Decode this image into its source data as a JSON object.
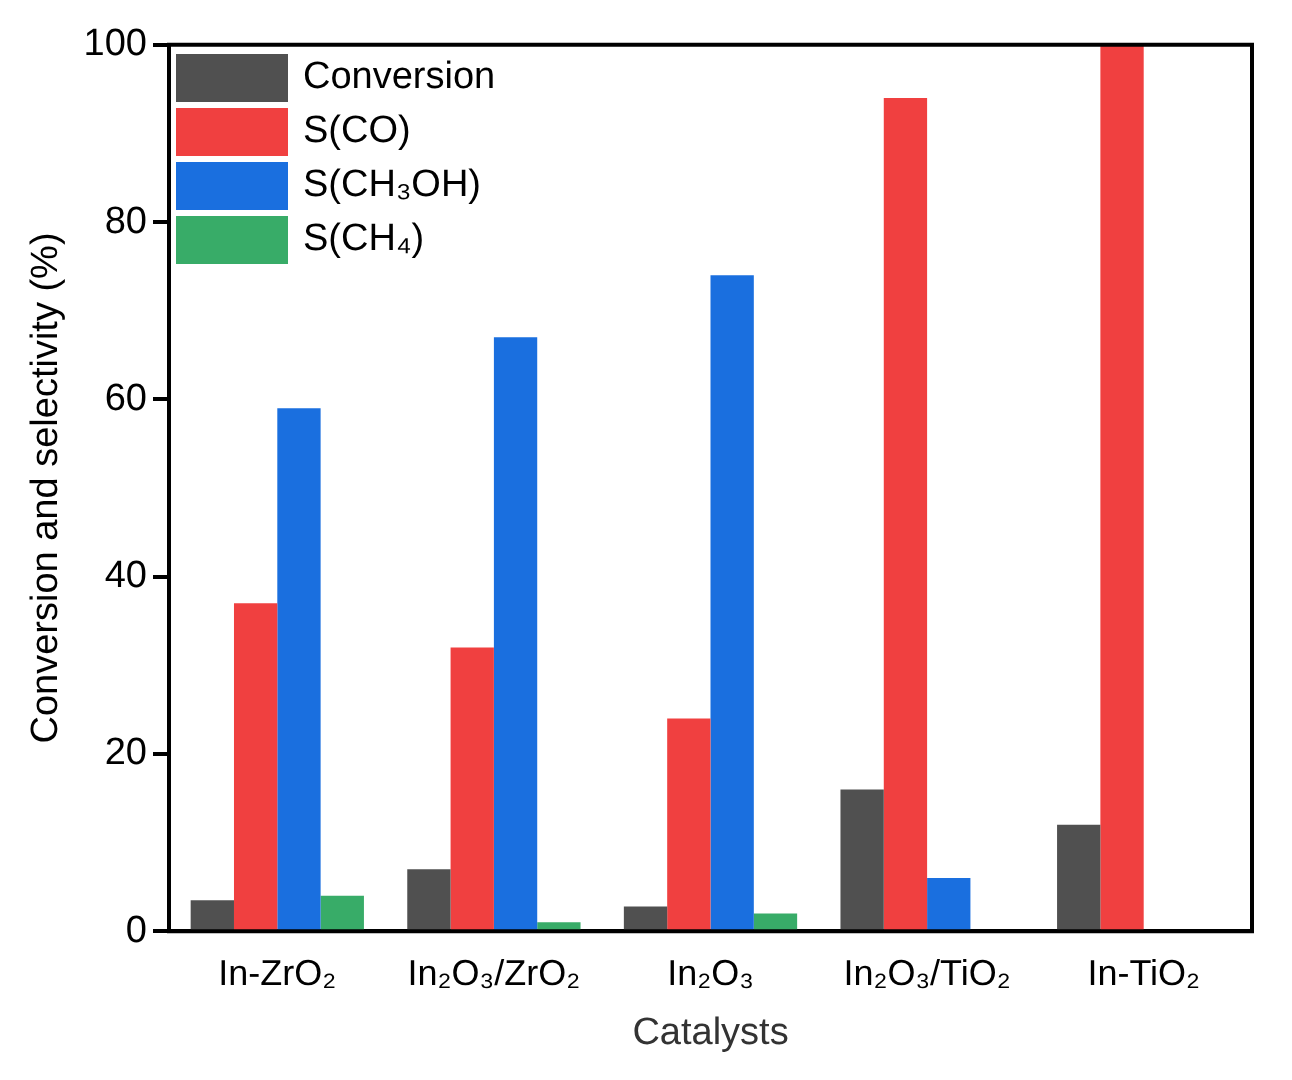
{
  "chart_data": {
    "type": "bar",
    "xlabel": "Catalysts",
    "ylabel": "Conversion and selectivity (%)",
    "categories": [
      "In-ZrO₂",
      "In₂O₃/ZrO₂",
      "In₂O₃",
      "In₂O₃/TiO₂",
      "In-TiO₂"
    ],
    "series": [
      {
        "name": "Conversion",
        "color": "#505050",
        "values": [
          3.5,
          7,
          2.8,
          16,
          12
        ]
      },
      {
        "name": "S(CO)",
        "color": "#f04040",
        "values": [
          37,
          32,
          24,
          94,
          100
        ]
      },
      {
        "name": "S(CH₃OH)",
        "color": "#1a6fdf",
        "values": [
          59,
          67,
          74,
          6,
          null
        ]
      },
      {
        "name": "S(CH₄)",
        "color": "#38ac68",
        "values": [
          4,
          1,
          2,
          null,
          null
        ]
      }
    ],
    "ylim": [
      0,
      100
    ],
    "yticks": [
      0,
      20,
      40,
      60,
      80,
      100
    ],
    "grid": false,
    "legend": "top left"
  }
}
